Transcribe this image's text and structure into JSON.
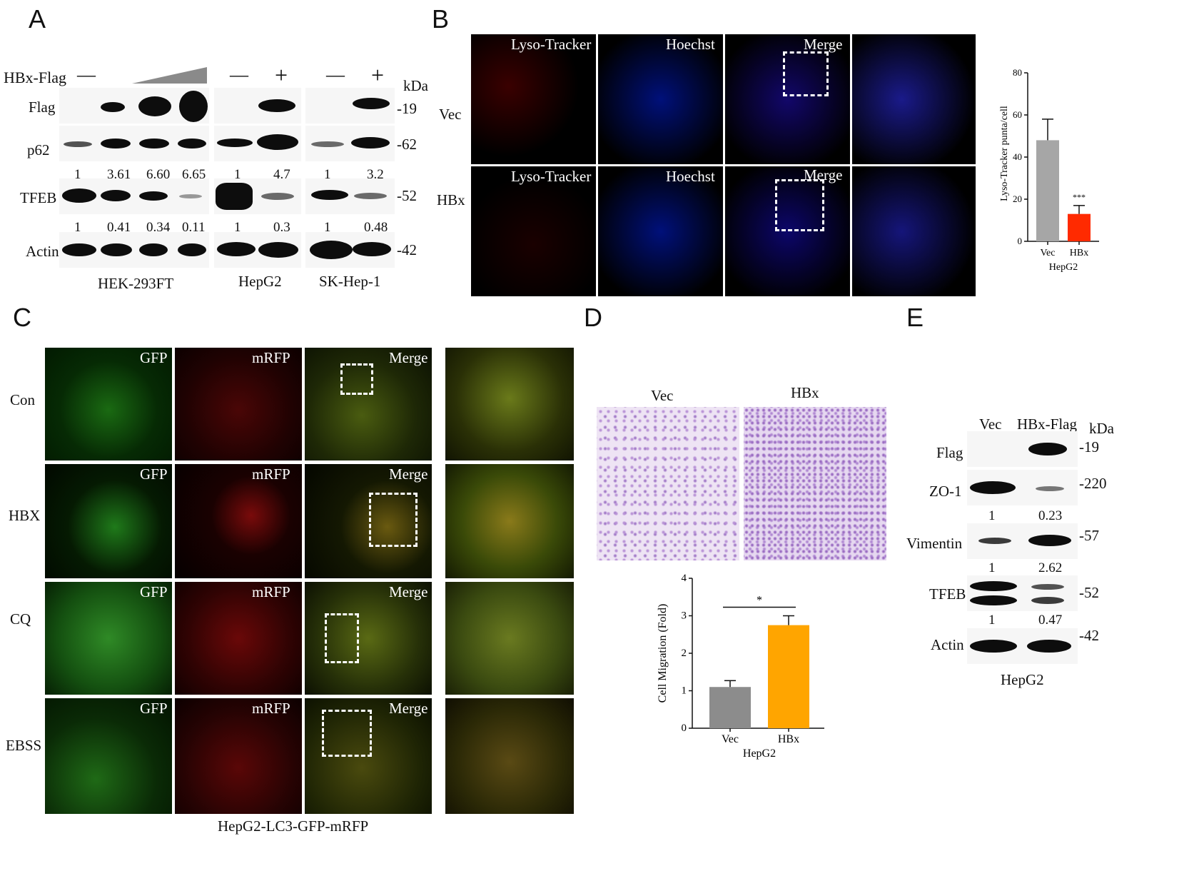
{
  "panel_letters": {
    "a": "A",
    "b": "B",
    "c": "C",
    "d": "D",
    "e": "E"
  },
  "panelA": {
    "hbx_label": "HBx-Flag",
    "minus": "—",
    "plus": "+",
    "kda": "kDa",
    "rows": [
      "Flag",
      "p62",
      "TFEB",
      "Actin"
    ],
    "markers": [
      "19",
      "62",
      "52",
      "42"
    ],
    "p62_values": [
      "1",
      "3.61",
      "6.60",
      "6.65",
      "1",
      "4.7",
      "1",
      "3.2"
    ],
    "tfeb_values": [
      "1",
      "0.41",
      "0.34",
      "0.11",
      "1",
      "0.3",
      "1",
      "0.48"
    ],
    "cell_lines": [
      "HEK-293FT",
      "HepG2",
      "SK-Hep-1"
    ]
  },
  "panelB": {
    "rows": [
      "Vec",
      "HBx"
    ],
    "columns": [
      "Lyso-Tracker",
      "Hoechst",
      "Merge"
    ],
    "chart_data": {
      "type": "bar",
      "categories": [
        "Vec",
        "HBx"
      ],
      "values": [
        48,
        13
      ],
      "errors": [
        10,
        4
      ],
      "colors": [
        "#a6a6a6",
        "#ff2a00"
      ],
      "ylabel": "Lyso-Tracker punta/cell",
      "xlabel": "HepG2",
      "ylim": [
        0,
        80
      ],
      "yticks": [
        "0",
        "20",
        "40",
        "60",
        "80"
      ],
      "annotation": "***"
    }
  },
  "panelC": {
    "rows": [
      "Con",
      "HBX",
      "CQ",
      "EBSS"
    ],
    "columns": [
      "GFP",
      "mRFP",
      "Merge"
    ],
    "caption": "HepG2-LC3-GFP-mRFP"
  },
  "panelD": {
    "columns": [
      "Vec",
      "HBx"
    ],
    "chart_data": {
      "type": "bar",
      "categories": [
        "Vec",
        "HBx"
      ],
      "values": [
        1.1,
        2.75
      ],
      "errors": [
        0.17,
        0.25
      ],
      "colors": [
        "#8c8c8c",
        "#ffa500"
      ],
      "ylabel": "Cell Migration (Fold)",
      "xlabel": "HepG2",
      "ylim": [
        0,
        4
      ],
      "yticks": [
        "0",
        "1",
        "2",
        "3",
        "4"
      ],
      "annotation": "*"
    }
  },
  "panelE": {
    "columns": [
      "Vec",
      "HBx-Flag"
    ],
    "kda": "kDa",
    "rows": [
      "Flag",
      "ZO-1",
      "Vimentin",
      "TFEB",
      "Actin"
    ],
    "markers": [
      "19",
      "220",
      "57",
      "52",
      "42"
    ],
    "zo1_values": [
      "1",
      "0.23"
    ],
    "vimentin_values": [
      "1",
      "2.62"
    ],
    "tfeb_values": [
      "1",
      "0.47"
    ],
    "cell_line": "HepG2"
  }
}
